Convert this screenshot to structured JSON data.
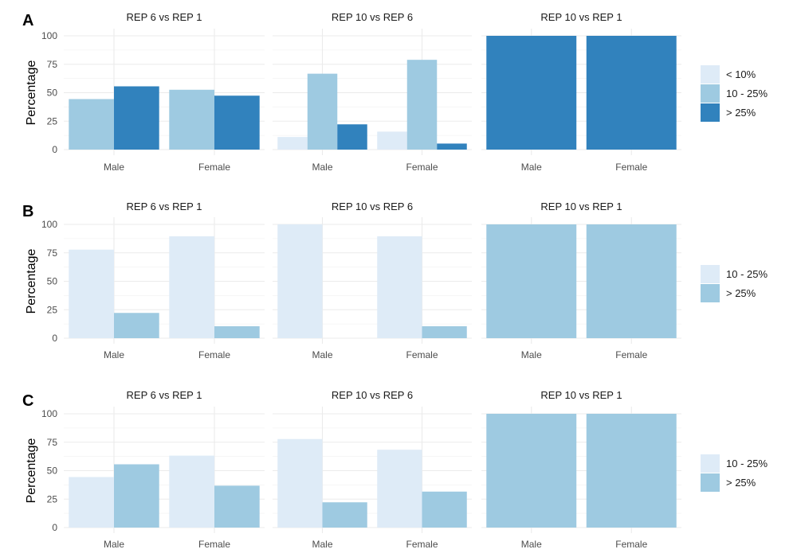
{
  "chart_data": [
    {
      "type": "bar",
      "row_label": "A",
      "ylabel": "Percentage",
      "ylim": [
        0,
        100
      ],
      "yticks": [
        "0",
        "25",
        "50",
        "75",
        "100"
      ],
      "categories": [
        "Male",
        "Female"
      ],
      "legend": {
        "placement": "right",
        "entries": [
          "< 10%",
          "10 - 25%",
          "> 25%"
        ]
      },
      "colors": {
        "< 10%": "#deebf7",
        "10 - 25%": "#9ecae1",
        "> 25%": "#3182bd"
      },
      "panels": [
        {
          "title": "REP 6 vs REP 1",
          "series": [
            {
              "name": "10 - 25%",
              "values": [
                44.4,
                52.6
              ]
            },
            {
              "name": "> 25%",
              "values": [
                55.6,
                47.4
              ]
            }
          ]
        },
        {
          "title": "REP 10 vs REP 6",
          "series": [
            {
              "name": "< 10%",
              "values": [
                11.1,
                15.8
              ]
            },
            {
              "name": "10 - 25%",
              "values": [
                66.7,
                78.9
              ]
            },
            {
              "name": "> 25%",
              "values": [
                22.2,
                5.3
              ]
            }
          ]
        },
        {
          "title": "REP 10 vs REP 1",
          "series": [
            {
              "name": "> 25%",
              "values": [
                100,
                100
              ]
            }
          ]
        }
      ]
    },
    {
      "type": "bar",
      "row_label": "B",
      "ylabel": "Percentage",
      "ylim": [
        0,
        100
      ],
      "yticks": [
        "0",
        "25",
        "50",
        "75",
        "100"
      ],
      "categories": [
        "Male",
        "Female"
      ],
      "legend": {
        "placement": "right",
        "entries": [
          "10 - 25%",
          "> 25%"
        ]
      },
      "colors": {
        "10 - 25%": "#deebf7",
        "> 25%": "#9ecae1"
      },
      "panels": [
        {
          "title": "REP 6 vs REP 1",
          "series": [
            {
              "name": "10 - 25%",
              "values": [
                77.8,
                89.5
              ]
            },
            {
              "name": "> 25%",
              "values": [
                22.2,
                10.5
              ]
            }
          ]
        },
        {
          "title": "REP 10 vs REP 6",
          "series": [
            {
              "name": "10 - 25%",
              "values": [
                100,
                89.5
              ]
            },
            {
              "name": "> 25%",
              "values": [
                0,
                10.5
              ]
            }
          ]
        },
        {
          "title": "REP 10 vs REP 1",
          "series": [
            {
              "name": "> 25%",
              "values": [
                100,
                100
              ]
            }
          ]
        }
      ]
    },
    {
      "type": "bar",
      "row_label": "C",
      "ylabel": "Percentage",
      "ylim": [
        0,
        100
      ],
      "yticks": [
        "0",
        "25",
        "50",
        "75",
        "100"
      ],
      "categories": [
        "Male",
        "Female"
      ],
      "legend": {
        "placement": "right",
        "entries": [
          "10 - 25%",
          "> 25%"
        ]
      },
      "colors": {
        "10 - 25%": "#deebf7",
        "> 25%": "#9ecae1"
      },
      "panels": [
        {
          "title": "REP 6 vs REP 1",
          "series": [
            {
              "name": "10 - 25%",
              "values": [
                44.4,
                63.2
              ]
            },
            {
              "name": "> 25%",
              "values": [
                55.6,
                36.8
              ]
            }
          ]
        },
        {
          "title": "REP 10 vs REP 6",
          "series": [
            {
              "name": "10 - 25%",
              "values": [
                77.8,
                68.4
              ]
            },
            {
              "name": "> 25%",
              "values": [
                22.2,
                31.6
              ]
            }
          ]
        },
        {
          "title": "REP 10 vs REP 1",
          "series": [
            {
              "name": "> 25%",
              "values": [
                100,
                100
              ]
            }
          ]
        }
      ]
    }
  ]
}
